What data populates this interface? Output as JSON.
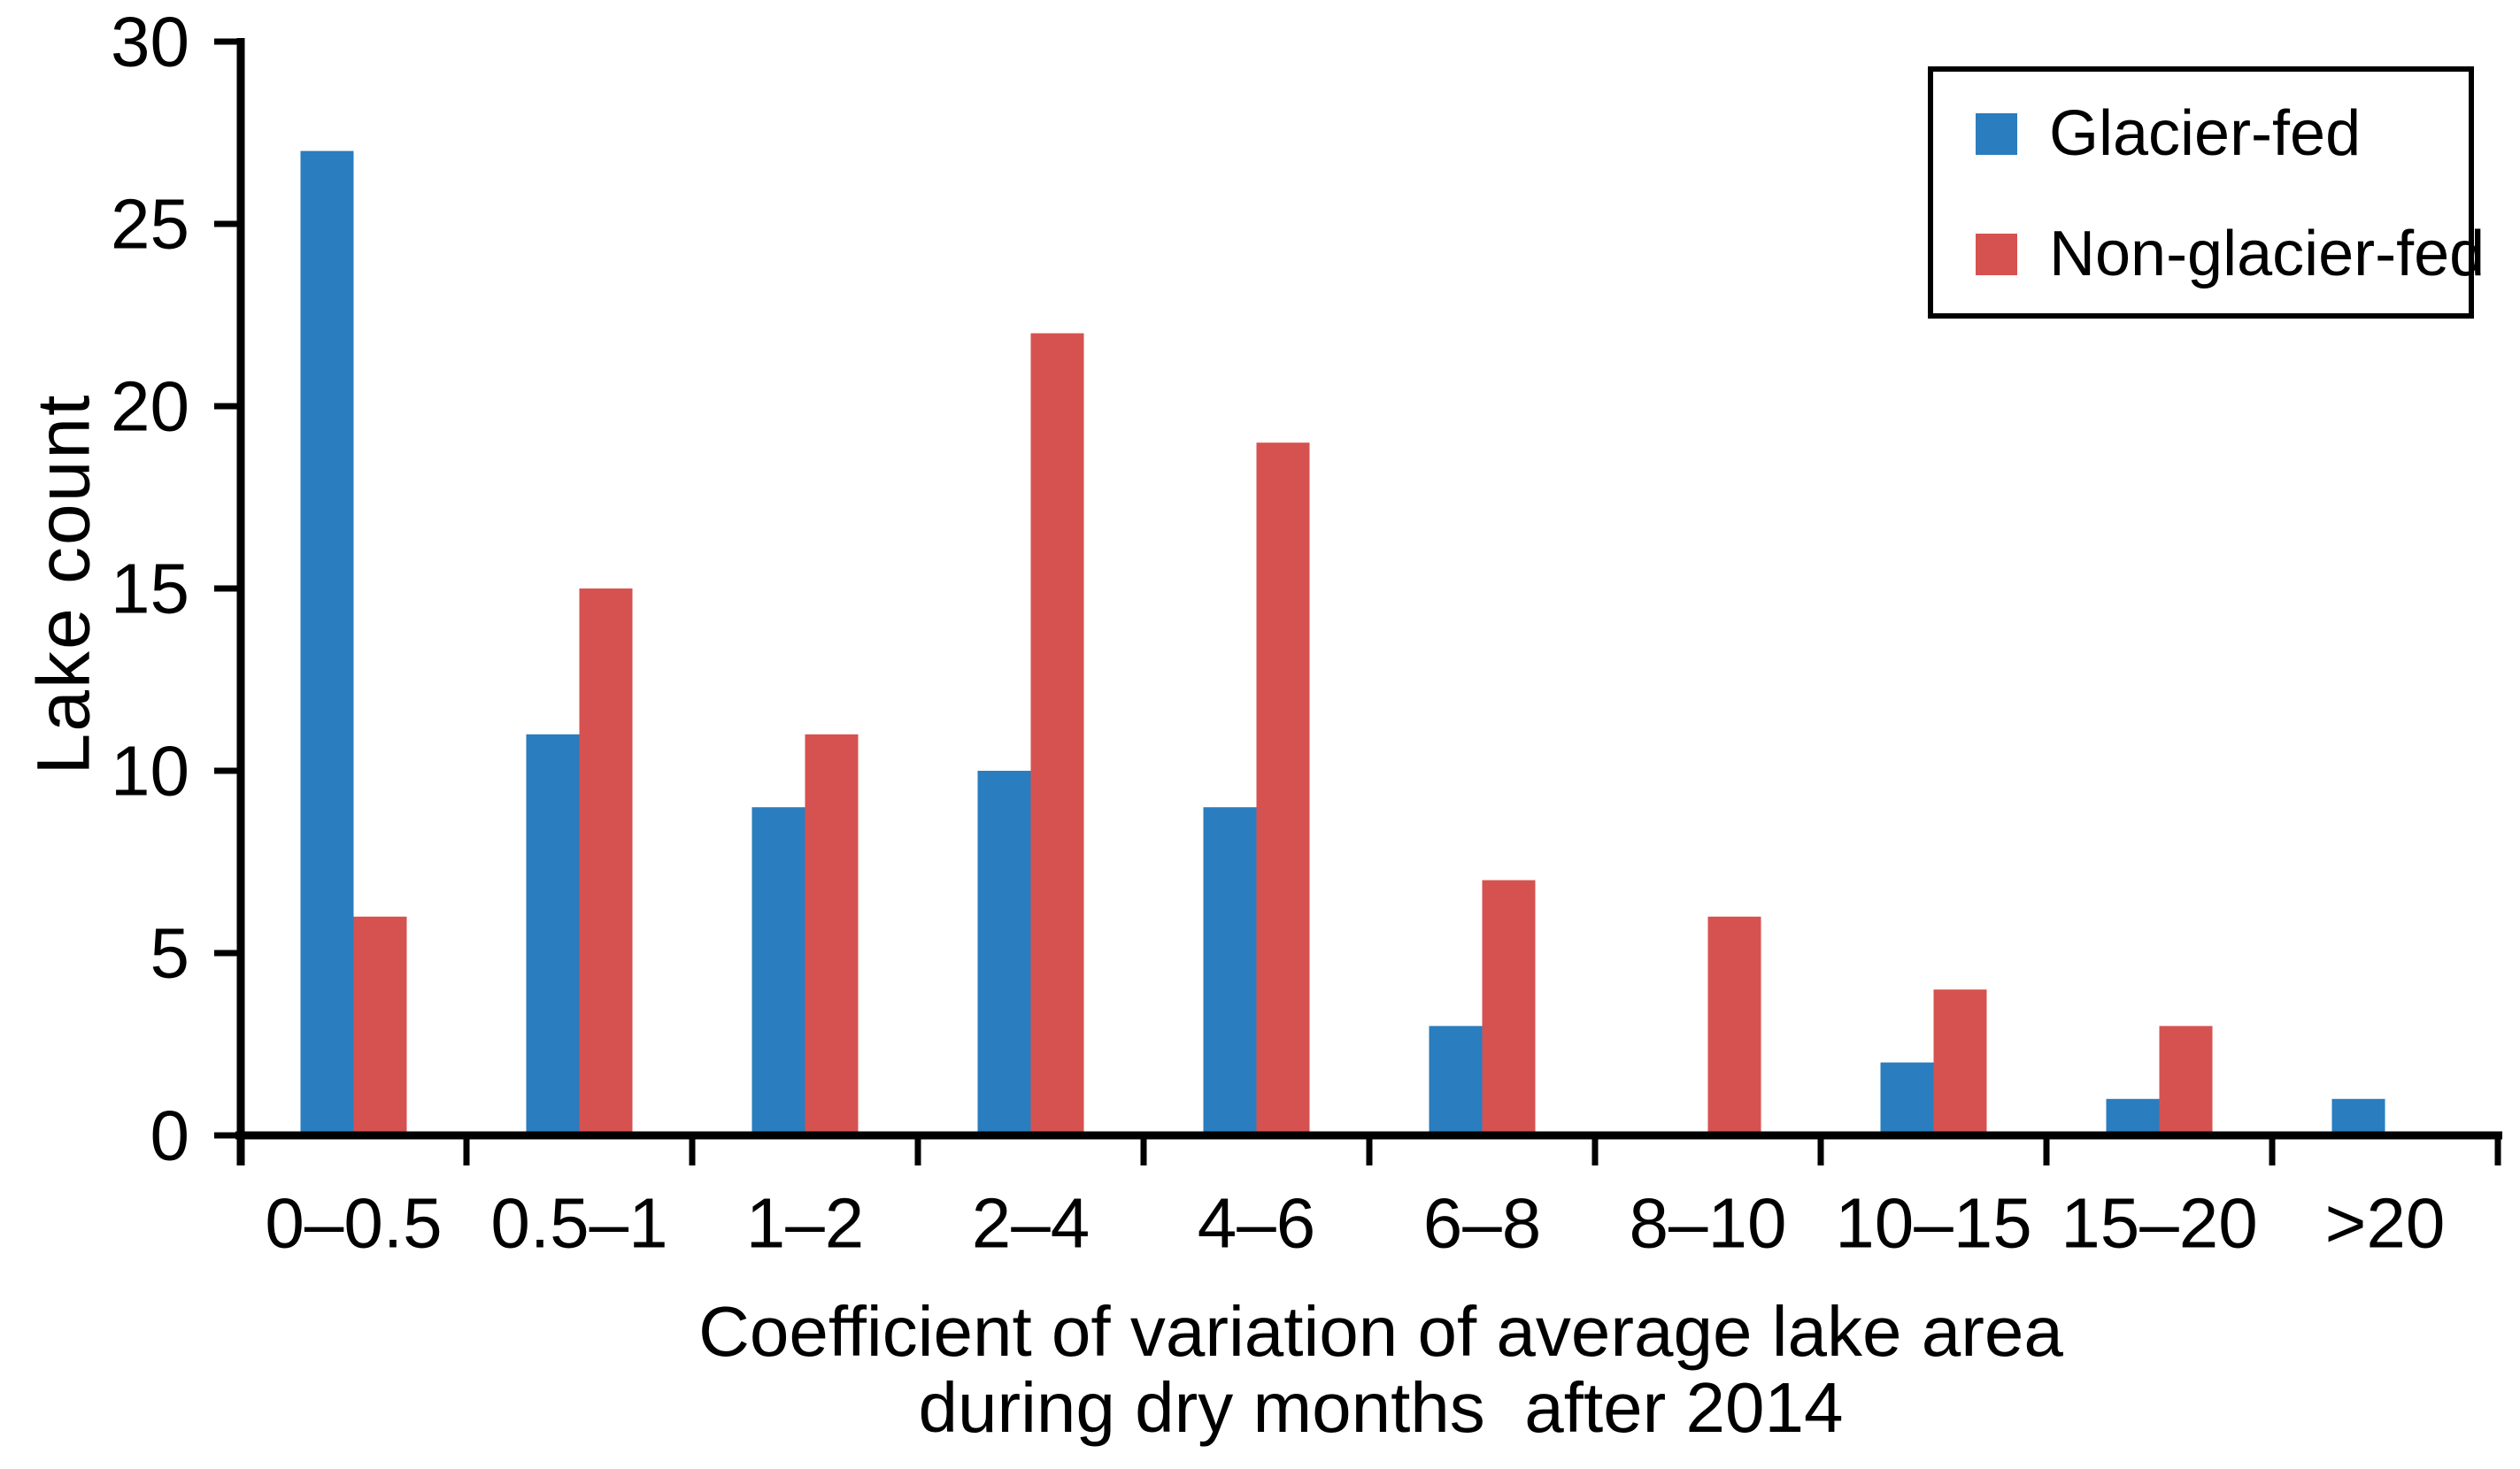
{
  "chart_data": {
    "type": "bar",
    "title": "",
    "ylabel": "Lake count",
    "xlabel_lines": [
      "Coefficient of variation of average lake area",
      "during dry months  after 2014"
    ],
    "categories": [
      "0–0.5",
      "0.5–1",
      "1–2",
      "2–4",
      "4–6",
      "6–8",
      "8–10",
      "10–15",
      "15–20",
      ">20"
    ],
    "series": [
      {
        "name": "Glacier-fed",
        "color": "#2A7DBE",
        "values": [
          27,
          11,
          9,
          10,
          9,
          3,
          0,
          2,
          1,
          1
        ]
      },
      {
        "name": "Non-glacier-fed",
        "color": "#D65250",
        "values": [
          6,
          15,
          11,
          22,
          19,
          7,
          6,
          4,
          3,
          0
        ]
      }
    ],
    "ylim": [
      0,
      30
    ],
    "yticks": [
      0,
      5,
      10,
      15,
      20,
      25,
      30
    ],
    "grid": false,
    "legend_position": "top-right",
    "axis_color": "#000000",
    "background": "#FFFFFF"
  }
}
